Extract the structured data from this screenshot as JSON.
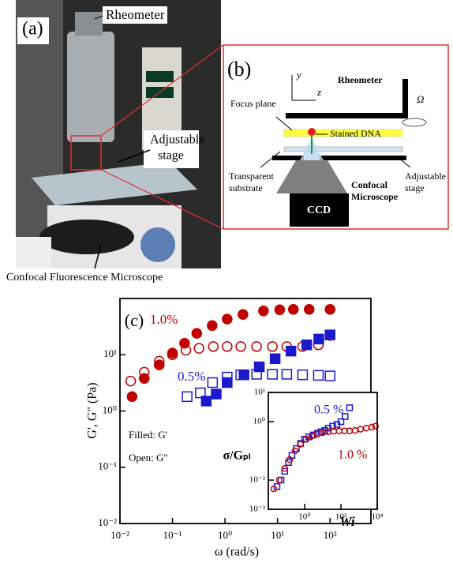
{
  "panel_a": {
    "label": "(a)",
    "rheometer": "Rheometer",
    "stage": [
      "Adjustable",
      "stage"
    ],
    "caption": "Confocal Fluorescence Microscope"
  },
  "panel_b": {
    "label": "(b)",
    "axis_y": "y",
    "axis_z": "z",
    "rheometer": "Rheometer",
    "omega": "Ω",
    "focus_plane": "Focus plane",
    "stained_dna": "Stained DNA",
    "substrate": [
      "Transparent",
      "substrate"
    ],
    "stage": [
      "Adjustable",
      "stage"
    ],
    "microscope": [
      "Confocal",
      "Microscope"
    ],
    "ccd": "CCD"
  },
  "chart_data": [
    {
      "type": "scatter",
      "panel_label": "(c)",
      "x_label": "ω (rad/s)",
      "y_label": "G', G\" (Pa)",
      "xscale": "log",
      "yscale": "log",
      "xlim": [
        0.01,
        600
      ],
      "ylim": [
        0.01,
        100
      ],
      "xticks": [
        {
          "value": 0.01,
          "label": "10⁻²"
        },
        {
          "value": 0.1,
          "label": "10⁻¹"
        },
        {
          "value": 1,
          "label": "10⁰"
        },
        {
          "value": 10,
          "label": "10¹"
        },
        {
          "value": 100,
          "label": "10²"
        }
      ],
      "yticks": [
        {
          "value": 0.01,
          "label": "10⁻²"
        },
        {
          "value": 0.1,
          "label": "10⁻¹"
        },
        {
          "value": 1,
          "label": "10⁰"
        },
        {
          "value": 10,
          "label": "10¹"
        }
      ],
      "annotations": [
        {
          "text": "1.0%",
          "color": "#c00000"
        },
        {
          "text": "0.5%",
          "color": "#1a1acc"
        },
        {
          "text": "Filled: G'",
          "color": "#000000"
        },
        {
          "text": "Open: G\"",
          "color": "#000000"
        }
      ],
      "series": [
        {
          "marker": "circle",
          "filled": true,
          "color": "#c00000",
          "x": [
            0.017,
            0.029,
            0.056,
            0.1,
            0.17,
            0.29,
            0.57,
            1.1,
            2.2,
            5.4,
            11,
            20,
            40,
            100
          ],
          "values": [
            1.8,
            3.8,
            6.6,
            10.7,
            16,
            24,
            33,
            43,
            52,
            60,
            63,
            64,
            64,
            64
          ]
        },
        {
          "marker": "circle",
          "filled": false,
          "color": "#c00000",
          "x": [
            0.016,
            0.029,
            0.056,
            0.1,
            0.18,
            0.32,
            0.6,
            1.1,
            2,
            4,
            8,
            15,
            30,
            60,
            100
          ],
          "values": [
            3.4,
            4.9,
            7.7,
            10,
            12,
            13,
            14,
            14,
            14,
            14,
            14,
            14,
            14,
            15,
            22
          ]
        },
        {
          "marker": "square",
          "filled": true,
          "color": "#1a1acc",
          "x": [
            0.44,
            0.68,
            1.1,
            2.3,
            4.5,
            9,
            18,
            36,
            61,
            100
          ],
          "values": [
            1.5,
            2,
            3.2,
            4.4,
            6.1,
            8.5,
            11.6,
            15,
            19,
            22.5
          ]
        },
        {
          "marker": "square",
          "filled": false,
          "color": "#1a1acc",
          "x": [
            0.19,
            0.34,
            0.58,
            1.1,
            2,
            4,
            8,
            15,
            30,
            60,
            100
          ],
          "values": [
            1.8,
            2.1,
            3.2,
            4,
            4.4,
            4.5,
            4.5,
            4.5,
            4.4,
            4.3,
            4.2
          ]
        }
      ]
    },
    {
      "type": "scatter",
      "x_label": "Wi",
      "y_label": "σ/Gₚₗ",
      "xscale": "log",
      "yscale": "log",
      "xlim": [
        0.01,
        10000
      ],
      "ylim": [
        0.001,
        10
      ],
      "xticks": [
        {
          "value": 1,
          "label": "10⁰"
        },
        {
          "value": 100,
          "label": "10²"
        },
        {
          "value": 10000,
          "label": "10⁴"
        }
      ],
      "yticks": [
        {
          "value": 0.001,
          "label": "10⁻³"
        },
        {
          "value": 0.01,
          "label": "10⁻²"
        },
        {
          "value": 1,
          "label": "10⁰"
        },
        {
          "value": 10,
          "label": "10¹"
        }
      ],
      "annotations": [
        {
          "text": "0.5 %",
          "color": "#1a1acc"
        },
        {
          "text": "1.0 %",
          "color": "#c00000"
        }
      ],
      "series": [
        {
          "marker": "square",
          "filled": false,
          "color": "#1a1acc",
          "x": [
            0.03,
            0.05,
            0.08,
            0.13,
            0.2,
            0.35,
            0.6,
            1,
            1.7,
            3,
            5,
            8,
            13,
            20,
            35,
            60,
            100,
            170,
            300
          ],
          "values": [
            0.006,
            0.01,
            0.02,
            0.04,
            0.07,
            0.12,
            0.18,
            0.25,
            0.3,
            0.35,
            0.4,
            0.45,
            0.5,
            0.6,
            0.7,
            0.8,
            1,
            1.5,
            3
          ]
        },
        {
          "marker": "circle",
          "filled": false,
          "color": "#c00000",
          "x": [
            0.02,
            0.04,
            0.08,
            0.15,
            0.3,
            0.6,
            1.2,
            2.5,
            5,
            10,
            20,
            40,
            80,
            160,
            300,
            600,
            1200,
            2500,
            5000,
            8000
          ],
          "values": [
            0.005,
            0.01,
            0.025,
            0.05,
            0.1,
            0.17,
            0.25,
            0.32,
            0.38,
            0.42,
            0.45,
            0.47,
            0.48,
            0.48,
            0.48,
            0.5,
            0.55,
            0.6,
            0.65,
            0.7
          ]
        }
      ]
    }
  ]
}
